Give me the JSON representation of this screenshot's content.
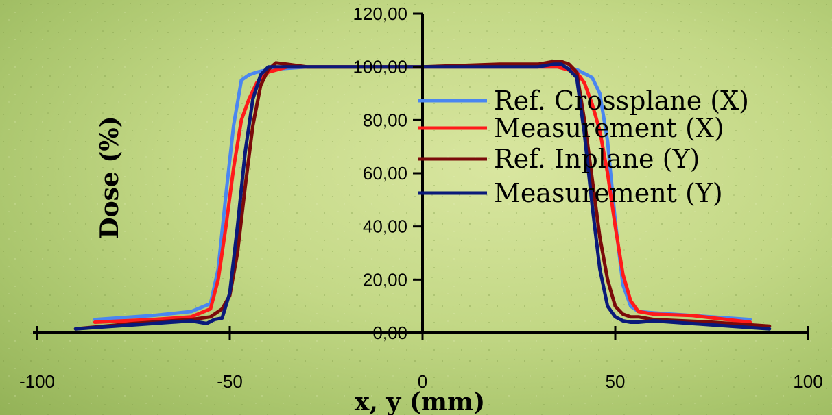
{
  "chart_data": {
    "type": "line",
    "title": "",
    "xlabel": "x, y (mm)",
    "ylabel": "Dose (%)",
    "xlim": [
      -100,
      100
    ],
    "ylim": [
      0,
      120
    ],
    "x_ticks": [
      -100,
      -50,
      0,
      50,
      100
    ],
    "x_tick_labels": [
      "-100",
      "-50",
      "0",
      "50",
      "100"
    ],
    "y_ticks": [
      0,
      20,
      40,
      60,
      80,
      100,
      120
    ],
    "y_tick_labels": [
      "0,00",
      "20,00",
      "40,00",
      "60,00",
      "80,00",
      "100,00",
      "120,00"
    ],
    "grid": false,
    "legend_position": "right",
    "series": [
      {
        "name": "Ref. Crossplane (X)",
        "color": "#4a86f0",
        "x": [
          -85,
          -70,
          -60,
          -55,
          -53,
          -51,
          -49,
          -47,
          -45,
          -43,
          -40,
          -30,
          0,
          20,
          35,
          40,
          44,
          46,
          48,
          50,
          52,
          54,
          56,
          60,
          70,
          85
        ],
        "y": [
          5,
          6.5,
          8,
          11,
          24,
          52,
          78,
          95,
          97,
          98,
          99,
          100,
          100,
          100,
          100,
          99,
          96,
          90,
          72,
          42,
          18,
          10,
          8,
          7.5,
          6.5,
          5
        ]
      },
      {
        "name": "Measurement (X)",
        "color": "#ff1a1a",
        "x": [
          -85,
          -70,
          -60,
          -55,
          -53,
          -51,
          -49,
          -47,
          -45,
          -43,
          -40,
          -35,
          -20,
          0,
          20,
          35,
          40,
          42,
          44,
          46,
          48,
          50,
          52,
          54,
          56,
          60,
          70,
          85
        ],
        "y": [
          4,
          5,
          6,
          9,
          20,
          40,
          62,
          80,
          88,
          94,
          98,
          100,
          100,
          100,
          100,
          100,
          98,
          94,
          86,
          76,
          60,
          40,
          22,
          12,
          8,
          7,
          6.5,
          4
        ]
      },
      {
        "name": "Ref. Inplane (Y)",
        "color": "#7a0a0a",
        "x": [
          -90,
          -75,
          -60,
          -55,
          -52,
          -50,
          -48,
          -46,
          -44,
          -42,
          -40,
          -38,
          -35,
          -30,
          -20,
          0,
          20,
          30,
          34,
          36,
          38,
          40,
          42,
          44,
          46,
          48,
          50,
          52,
          54,
          56,
          60,
          75,
          90
        ],
        "y": [
          1.5,
          3.5,
          5,
          6,
          9,
          14,
          30,
          55,
          78,
          93,
          99,
          101.5,
          101,
          100,
          100,
          100,
          101,
          101,
          102,
          102,
          101,
          98,
          80,
          58,
          36,
          20,
          10,
          7,
          6,
          6,
          5,
          4,
          2.5
        ]
      },
      {
        "name": "Measurement (Y)",
        "color": "#0a1a7a",
        "x": [
          -90,
          -75,
          -60,
          -56,
          -54,
          -52,
          -50,
          -48,
          -46,
          -44,
          -42,
          -40,
          -38,
          -35,
          -20,
          0,
          20,
          30,
          34,
          36,
          38,
          40,
          42,
          44,
          46,
          48,
          50,
          52,
          54,
          56,
          60,
          75,
          90
        ],
        "y": [
          1.5,
          3,
          4.5,
          3.5,
          5,
          5.5,
          15,
          40,
          68,
          88,
          97,
          100,
          100,
          100,
          100,
          100,
          100,
          100,
          101,
          101,
          99,
          96,
          75,
          48,
          24,
          10,
          6,
          4.5,
          4,
          4,
          4.5,
          3,
          1.5
        ]
      }
    ]
  }
}
